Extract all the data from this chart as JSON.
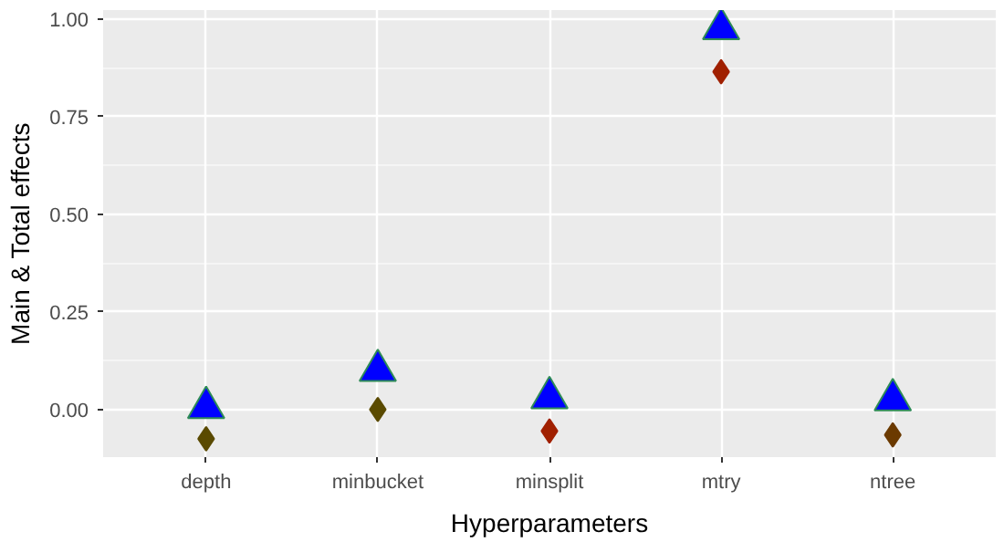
{
  "chart_data": {
    "type": "scatter",
    "xlabel": "Hyperparameters",
    "ylabel": "Main & Total effects",
    "categories": [
      "depth",
      "minbucket",
      "minsplit",
      "mtry",
      "ntree"
    ],
    "series": [
      {
        "marker": "triangle",
        "color": "#0000ff",
        "values": [
          0.005,
          0.1,
          0.03,
          0.975,
          0.025
        ]
      },
      {
        "marker": "diamond",
        "colors": [
          "#5a4a00",
          "#5a4a00",
          "#a02000",
          "#a02000",
          "#6b3a00"
        ],
        "values": [
          -0.075,
          0.0,
          -0.055,
          0.865,
          -0.065
        ]
      }
    ],
    "ylim": [
      -0.122,
      1.023
    ],
    "yticks": [
      {
        "value": 0,
        "label": "0.00"
      },
      {
        "value": 0.25,
        "label": "0.25"
      },
      {
        "value": 0.5,
        "label": "0.50"
      },
      {
        "value": 0.75,
        "label": "0.75"
      },
      {
        "value": 1,
        "label": "1.00"
      }
    ],
    "grid": true
  }
}
